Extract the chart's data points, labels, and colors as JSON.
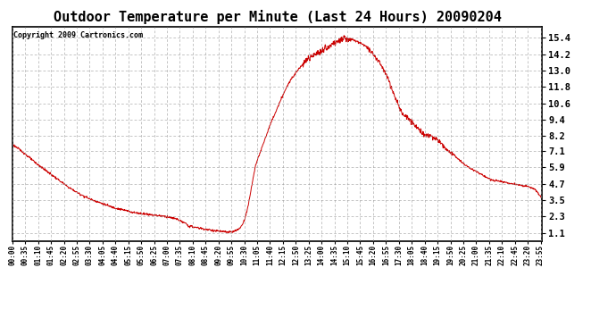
{
  "title": "Outdoor Temperature per Minute (Last 24 Hours) 20090204",
  "copyright_text": "Copyright 2009 Cartronics.com",
  "line_color": "#cc0000",
  "bg_color": "#ffffff",
  "grid_color": "#999999",
  "ylim": [
    0.5,
    16.2
  ],
  "yticks": [
    1.1,
    2.3,
    3.5,
    4.7,
    5.9,
    7.1,
    8.2,
    9.4,
    10.6,
    11.8,
    13.0,
    14.2,
    15.4
  ],
  "title_fontsize": 11,
  "copyright_fontsize": 6,
  "xlabel_fontsize": 5.5,
  "ylabel_fontsize": 7.5,
  "xtick_labels": [
    "00:00",
    "00:35",
    "01:10",
    "01:45",
    "02:20",
    "02:55",
    "03:30",
    "04:05",
    "04:40",
    "05:15",
    "05:50",
    "06:25",
    "07:00",
    "07:35",
    "08:10",
    "08:45",
    "09:20",
    "09:55",
    "10:30",
    "11:05",
    "11:40",
    "12:15",
    "12:50",
    "13:25",
    "14:00",
    "14:35",
    "15:10",
    "15:45",
    "16:20",
    "16:55",
    "17:30",
    "18:05",
    "18:40",
    "19:15",
    "19:50",
    "20:25",
    "21:00",
    "21:35",
    "22:10",
    "22:45",
    "23:20",
    "23:55"
  ],
  "xtick_minutes": [
    0,
    35,
    70,
    105,
    140,
    175,
    210,
    245,
    280,
    315,
    350,
    385,
    420,
    455,
    490,
    525,
    560,
    595,
    630,
    665,
    700,
    735,
    770,
    805,
    840,
    875,
    910,
    945,
    980,
    1015,
    1050,
    1085,
    1120,
    1155,
    1190,
    1225,
    1260,
    1295,
    1330,
    1365,
    1400,
    1435
  ],
  "key_times": [
    0,
    30,
    60,
    90,
    120,
    150,
    180,
    210,
    240,
    270,
    300,
    330,
    360,
    390,
    420,
    450,
    455,
    470,
    480,
    500,
    520,
    540,
    560,
    570,
    580,
    590,
    600,
    610,
    620,
    630,
    640,
    650,
    660,
    700,
    740,
    760,
    780,
    800,
    820,
    840,
    860,
    880,
    900,
    920,
    940,
    960,
    980,
    1000,
    1020,
    1040,
    1060,
    1080,
    1100,
    1120,
    1140,
    1160,
    1180,
    1200,
    1220,
    1240,
    1260,
    1280,
    1300,
    1320,
    1340,
    1360,
    1380,
    1400,
    1420,
    1439
  ],
  "key_values": [
    7.6,
    7.0,
    6.3,
    5.7,
    5.1,
    4.5,
    4.0,
    3.6,
    3.3,
    3.0,
    2.8,
    2.6,
    2.5,
    2.4,
    2.3,
    2.1,
    2.0,
    1.8,
    1.6,
    1.5,
    1.4,
    1.3,
    1.25,
    1.2,
    1.18,
    1.15,
    1.2,
    1.3,
    1.5,
    2.0,
    3.0,
    4.5,
    6.0,
    9.0,
    11.5,
    12.5,
    13.2,
    13.8,
    14.1,
    14.4,
    14.8,
    15.1,
    15.35,
    15.3,
    15.1,
    14.8,
    14.2,
    13.5,
    12.5,
    11.0,
    9.8,
    9.4,
    8.8,
    8.3,
    8.2,
    7.8,
    7.2,
    6.8,
    6.3,
    5.9,
    5.6,
    5.3,
    5.0,
    4.9,
    4.8,
    4.7,
    4.6,
    4.5,
    4.3,
    3.6
  ]
}
